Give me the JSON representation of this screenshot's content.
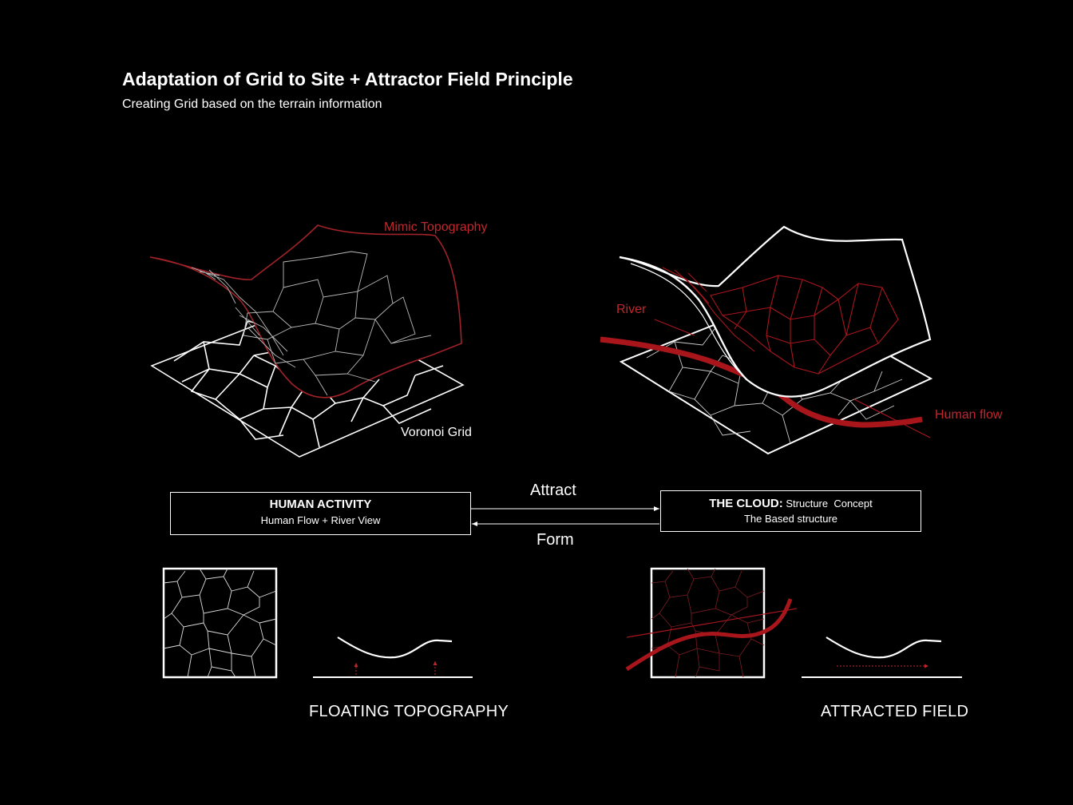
{
  "title": "Adaptation of Grid to Site + Attractor Field Principle",
  "subtitle": "Creating Grid based on the terrain information",
  "labels": {
    "mimic_topography": "Mimic Topography",
    "voronoi_grid": "Voronoi Grid",
    "river": "River",
    "human_flow": "Human flow"
  },
  "left_box": {
    "title": "HUMAN ACTIVITY",
    "subtitle": "Human Flow + River View"
  },
  "right_box": {
    "title_bold": "THE CLOUD:",
    "title_rest": " Structure  Concept",
    "subtitle": "The Based structure"
  },
  "arrows": {
    "top": "Attract",
    "bottom": "Form"
  },
  "captions": {
    "left": "FLOATING TOPOGRAPHY",
    "right": "ATTRACTED FIELD"
  },
  "colors": {
    "background": "#000000",
    "line": "#ffffff",
    "accent": "#c0272d"
  }
}
